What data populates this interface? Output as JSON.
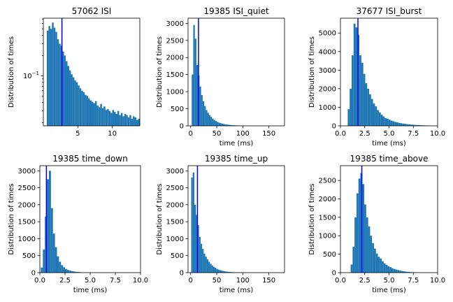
{
  "colors": {
    "bar": "#1f77b4",
    "marker": "#0000ff",
    "axes": "#000000"
  },
  "chart_data": [
    {
      "type": "bar",
      "title": "57062 ISI",
      "xlabel": "",
      "ylabel": "Distribution of times",
      "yscale": "log",
      "xlim": [
        0,
        14
      ],
      "ylim": [
        0.018,
        0.72
      ],
      "xticks": [
        5,
        10
      ],
      "xtick_labels": [
        "5",
        "10"
      ],
      "yticks": [
        0.1
      ],
      "ytick_labels": [
        "10^{-1}"
      ],
      "bin_start": 0.5,
      "bin_width": 0.25,
      "values": [
        0.47,
        0.55,
        0.5,
        0.62,
        0.52,
        0.45,
        0.35,
        0.3,
        0.28,
        0.23,
        0.2,
        0.165,
        0.14,
        0.12,
        0.105,
        0.095,
        0.085,
        0.08,
        0.072,
        0.065,
        0.06,
        0.057,
        0.052,
        0.05,
        0.046,
        0.043,
        0.041,
        0.039,
        0.042,
        0.036,
        0.034,
        0.038,
        0.033,
        0.035,
        0.031,
        0.032,
        0.03,
        0.028,
        0.031,
        0.029,
        0.027,
        0.03,
        0.026,
        0.028,
        0.025,
        0.027,
        0.026,
        0.024,
        0.026,
        0.023,
        0.025,
        0.024,
        0.022,
        0.023
      ],
      "marker_x": 2.7
    },
    {
      "type": "bar",
      "title": "19385 ISI_quiet",
      "xlabel": "time (ms)",
      "ylabel": "Distribution of times",
      "xlim": [
        -5,
        180
      ],
      "ylim": [
        0,
        3150
      ],
      "xticks": [
        0,
        50,
        100,
        150
      ],
      "xtick_labels": [
        "0",
        "50",
        "100",
        "150"
      ],
      "yticks": [
        0,
        500,
        1000,
        1500,
        2000,
        2500,
        3000
      ],
      "ytick_labels": [
        "0",
        "500",
        "1000",
        "1500",
        "2000",
        "2500",
        "3000"
      ],
      "bin_start": 2,
      "bin_width": 3,
      "values": [
        1500,
        2950,
        2550,
        1780,
        1480,
        1150,
        900,
        720,
        580,
        460,
        380,
        310,
        260,
        210,
        170,
        140,
        115,
        95,
        80,
        65,
        55,
        45,
        38,
        32,
        27,
        22,
        19,
        16,
        13,
        11,
        10,
        8,
        7,
        6,
        5,
        5,
        4,
        4,
        3,
        3,
        3,
        2,
        2,
        2,
        2,
        2,
        1,
        1,
        1,
        1,
        1,
        1,
        1,
        1
      ],
      "marker_x": 15
    },
    {
      "type": "bar",
      "title": "37677 ISI_burst",
      "xlabel": "time (ms)",
      "ylabel": "Distribution of times",
      "xlim": [
        0,
        10
      ],
      "ylim": [
        0,
        5800
      ],
      "xticks": [
        0,
        2.5,
        5,
        7.5,
        10
      ],
      "xtick_labels": [
        "0.0",
        "2.5",
        "5.0",
        "7.5",
        "10.0"
      ],
      "yticks": [
        0,
        1000,
        2000,
        3000,
        4000,
        5000
      ],
      "ytick_labels": [
        "0",
        "1000",
        "2000",
        "3000",
        "4000",
        "5000"
      ],
      "bin_start": 0.75,
      "bin_width": 0.2,
      "values": [
        900,
        2000,
        3800,
        5500,
        5300,
        4900,
        3800,
        3400,
        2800,
        2300,
        2000,
        1700,
        1450,
        1200,
        1050,
        850,
        720,
        600,
        500,
        420,
        380,
        330,
        280,
        250,
        210,
        190,
        160,
        140,
        120,
        110,
        90,
        80,
        70,
        60,
        50,
        45,
        40,
        35,
        30,
        25,
        20,
        15,
        10,
        5
      ],
      "marker_x": 1.8
    },
    {
      "type": "bar",
      "title": "19385 time_down",
      "xlabel": "time (ms)",
      "ylabel": "Distribution of times",
      "xlim": [
        0,
        10
      ],
      "ylim": [
        0,
        3150
      ],
      "xticks": [
        0,
        2.5,
        5,
        7.5,
        10
      ],
      "xtick_labels": [
        "0.0",
        "2.5",
        "5.0",
        "7.5",
        "10.0"
      ],
      "yticks": [
        0,
        500,
        1000,
        1500,
        2000,
        2500,
        3000
      ],
      "ytick_labels": [
        "0",
        "500",
        "1000",
        "1500",
        "2000",
        "2500",
        "3000"
      ],
      "bin_start": 0.1,
      "bin_width": 0.2,
      "values": [
        150,
        680,
        1650,
        2750,
        3000,
        1900,
        1150,
        750,
        480,
        320,
        220,
        160,
        110,
        80,
        60,
        45,
        35,
        25,
        20,
        15,
        10,
        8,
        6,
        5,
        4,
        3,
        2,
        1
      ],
      "marker_x": 0.65
    },
    {
      "type": "bar",
      "title": "19385 time_up",
      "xlabel": "time (ms)",
      "ylabel": "Distribution of times",
      "xlim": [
        -5,
        180
      ],
      "ylim": [
        0,
        3150
      ],
      "xticks": [
        0,
        50,
        100,
        150
      ],
      "xtick_labels": [
        "0",
        "50",
        "100",
        "150"
      ],
      "yticks": [
        0,
        500,
        1000,
        1500,
        2000,
        2500,
        3000
      ],
      "ytick_labels": [
        "0",
        "500",
        "1000",
        "1500",
        "2000",
        "2500",
        "3000"
      ],
      "bin_start": 1,
      "bin_width": 3,
      "values": [
        2800,
        2950,
        2000,
        1700,
        1400,
        1050,
        850,
        700,
        560,
        470,
        390,
        320,
        260,
        210,
        170,
        140,
        110,
        90,
        75,
        60,
        50,
        40,
        33,
        27,
        22,
        18,
        15,
        12,
        10,
        8,
        7,
        6,
        5,
        4,
        4,
        3,
        3,
        2,
        2,
        2,
        1,
        1
      ],
      "marker_x": 13
    },
    {
      "type": "bar",
      "title": "19385 time_above",
      "xlabel": "time (ms)",
      "ylabel": "Distribution of times",
      "xlim": [
        0,
        10
      ],
      "ylim": [
        0,
        2900
      ],
      "xticks": [
        0,
        2.5,
        5,
        7.5,
        10
      ],
      "xtick_labels": [
        "0.0",
        "2.5",
        "5.0",
        "7.5",
        "10.0"
      ],
      "yticks": [
        0,
        500,
        1000,
        1500,
        2000,
        2500
      ],
      "ytick_labels": [
        "0",
        "500",
        "1000",
        "1500",
        "2000",
        "2500"
      ],
      "bin_start": 1.05,
      "bin_width": 0.2,
      "values": [
        220,
        700,
        1500,
        2150,
        2550,
        2700,
        2400,
        1850,
        1500,
        1250,
        1000,
        800,
        650,
        520,
        430,
        380,
        310,
        250,
        210,
        175,
        150,
        120,
        100,
        85,
        70,
        55,
        45,
        35,
        28,
        22,
        17,
        13,
        10,
        8,
        6,
        5
      ],
      "marker_x": 2.2
    }
  ]
}
